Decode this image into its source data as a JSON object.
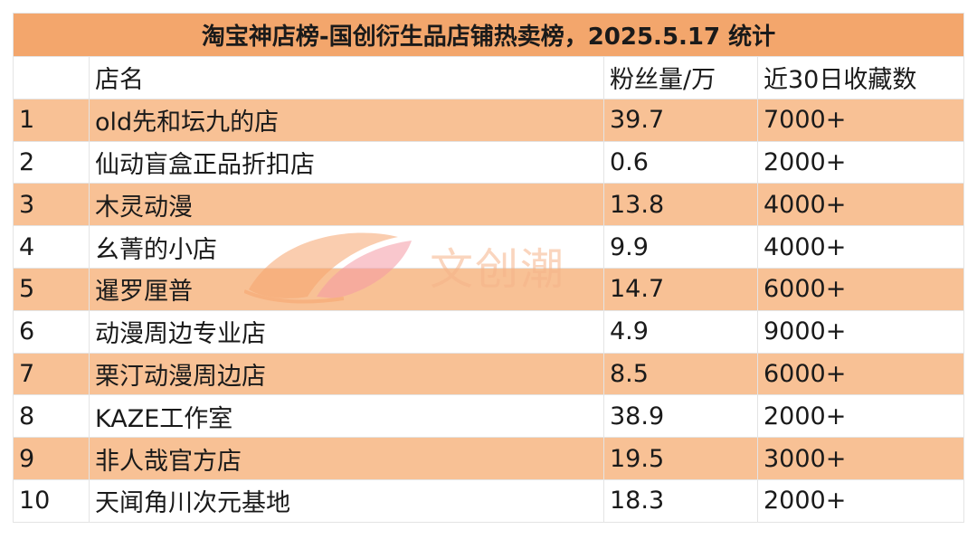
{
  "title": "淘宝神店榜-国创衍生品店铺热卖榜，2025.5.17 统计",
  "headers": {
    "rank": "",
    "name": "店名",
    "fans": "粉丝量/万",
    "favorites": "近30日收藏数"
  },
  "rows": [
    {
      "rank": "1",
      "name": "old先和坛九的店",
      "fans": "39.7",
      "favorites": "7000+"
    },
    {
      "rank": "2",
      "name": "仙动盲盒正品折扣店",
      "fans": "0.6",
      "favorites": "2000+"
    },
    {
      "rank": "3",
      "name": "木灵动漫",
      "fans": "13.8",
      "favorites": "4000+"
    },
    {
      "rank": "4",
      "name": "幺菁的小店",
      "fans": "9.9",
      "favorites": "4000+"
    },
    {
      "rank": "5",
      "name": "暹罗厘普",
      "fans": "14.7",
      "favorites": "6000+"
    },
    {
      "rank": "6",
      "name": "动漫周边专业店",
      "fans": "4.9",
      "favorites": "9000+"
    },
    {
      "rank": "7",
      "name": "栗汀动漫周边店",
      "fans": "8.5",
      "favorites": "6000+"
    },
    {
      "rank": "8",
      "name": "KAZE工作室",
      "fans": "38.9",
      "favorites": "2000+"
    },
    {
      "rank": "9",
      "name": "非人哉官方店",
      "fans": "19.5",
      "favorites": "3000+"
    },
    {
      "rank": "10",
      "name": "天闻角川次元基地",
      "fans": "18.3",
      "favorites": "2000+"
    }
  ],
  "watermark": {
    "text": "文创潮",
    "icon": "leaf-logo-icon"
  }
}
